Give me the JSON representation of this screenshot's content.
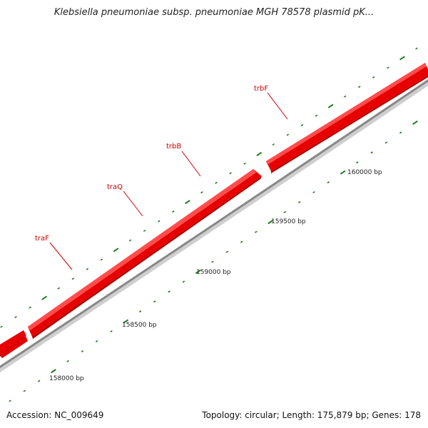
{
  "title": "Klebsiella pneumoniae subsp. pneumoniae MGH 78578 plasmid pK...",
  "footer": {
    "accession": "Accession: NC_009649",
    "summary": "Topology: circular; Length: 175,879 bp; Genes: 178"
  },
  "colors": {
    "gene": "#e60000",
    "gene_label": "#cc0000",
    "backbone": "#888888",
    "tick": "#1e7d1e"
  },
  "genes": [
    {
      "name": "traF"
    },
    {
      "name": "traQ"
    },
    {
      "name": "trbB"
    },
    {
      "name": "trbF"
    }
  ],
  "scale_labels": [
    "158000 bp",
    "158500 bp",
    "159000 bp",
    "159500 bp",
    "160000 bp"
  ]
}
